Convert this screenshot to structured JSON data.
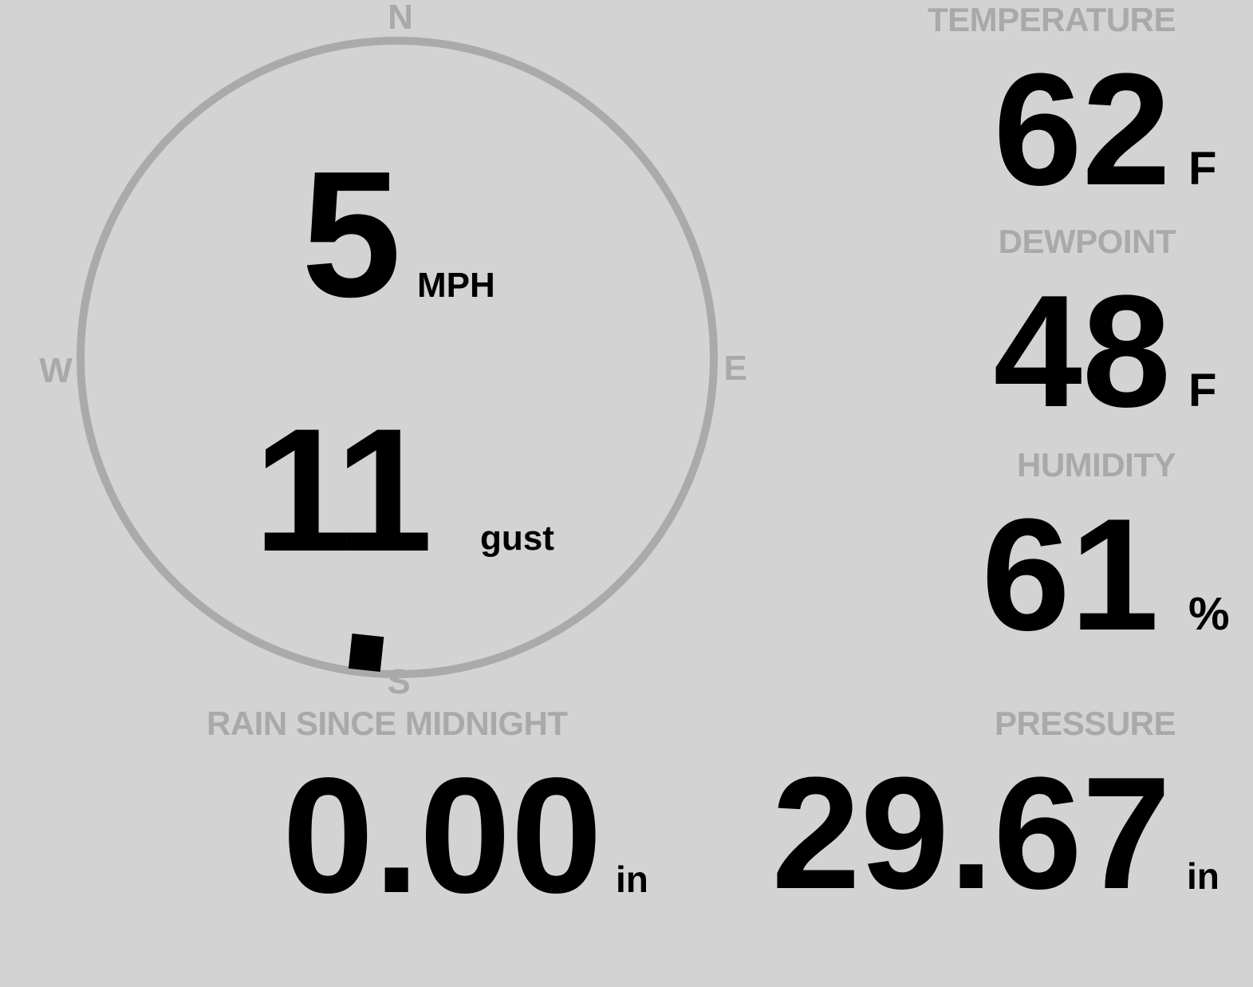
{
  "wind": {
    "speed": "5",
    "speed_unit": "MPH",
    "gust": "11",
    "gust_label": "gust",
    "direction_deg": 186,
    "cardinals": {
      "n": "N",
      "e": "E",
      "s": "S",
      "w": "W"
    }
  },
  "temperature": {
    "label": "TEMPERATURE",
    "value": "62",
    "unit": "F"
  },
  "dewpoint": {
    "label": "DEWPOINT",
    "value": "48",
    "unit": "F"
  },
  "humidity": {
    "label": "HUMIDITY",
    "value": "61",
    "unit": "%"
  },
  "pressure": {
    "label": "PRESSURE",
    "value": "29.67",
    "unit": "in"
  },
  "rain": {
    "label": "RAIN SINCE MIDNIGHT",
    "value": "0.00",
    "unit": "in"
  },
  "colors": {
    "background": "#d3d3d3",
    "label": "#a9a9a9",
    "ring": "#aaaaaa",
    "value": "#000000"
  }
}
